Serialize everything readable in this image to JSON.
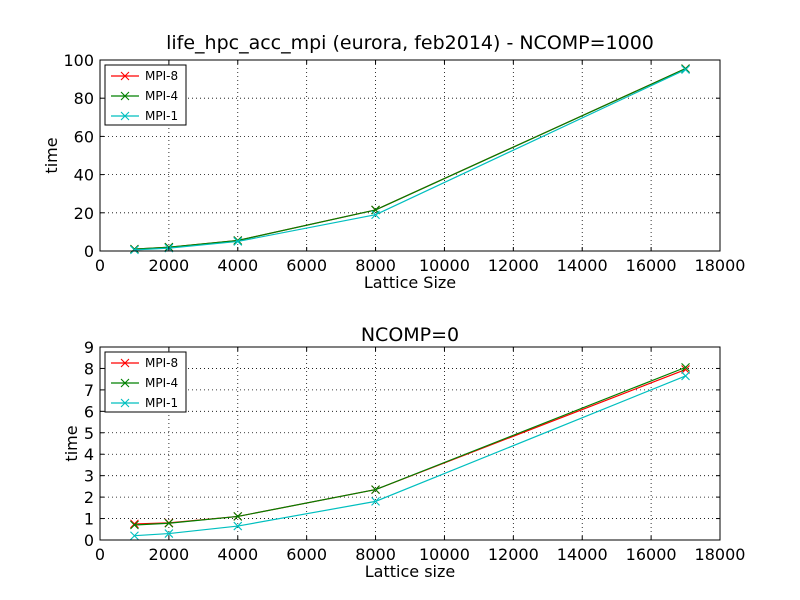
{
  "chart_data": [
    {
      "type": "line",
      "title": "life_hpc_acc_mpi (eurora, feb2014) - NCOMP=1000",
      "xlabel": "Lattice Size",
      "ylabel": "time",
      "xlim": [
        0,
        18000
      ],
      "ylim": [
        0,
        100
      ],
      "xticks": [
        0,
        2000,
        4000,
        6000,
        8000,
        10000,
        12000,
        14000,
        16000,
        18000
      ],
      "yticks": [
        0,
        20,
        40,
        60,
        80,
        100
      ],
      "grid": true,
      "legend_position": "top-left",
      "x": [
        1000,
        2000,
        4000,
        8000,
        17000
      ],
      "series": [
        {
          "name": "MPI-8",
          "color": "#ff0000",
          "values": [
            1.0,
            2.0,
            5.5,
            21.5,
            95.5
          ]
        },
        {
          "name": "MPI-4",
          "color": "#008000",
          "values": [
            1.0,
            2.0,
            5.5,
            21.5,
            95.5
          ]
        },
        {
          "name": "MPI-1",
          "color": "#00bfbf",
          "values": [
            0.6,
            1.5,
            5.0,
            19.0,
            95.0
          ]
        }
      ]
    },
    {
      "type": "line",
      "title": "NCOMP=0",
      "xlabel": "Lattice size",
      "ylabel": "time",
      "xlim": [
        0,
        18000
      ],
      "ylim": [
        0,
        9
      ],
      "xticks": [
        0,
        2000,
        4000,
        6000,
        8000,
        10000,
        12000,
        14000,
        16000,
        18000
      ],
      "yticks": [
        0,
        1,
        2,
        3,
        4,
        5,
        6,
        7,
        8,
        9
      ],
      "grid": true,
      "legend_position": "top-left",
      "x": [
        1000,
        2000,
        4000,
        8000,
        17000
      ],
      "series": [
        {
          "name": "MPI-8",
          "color": "#ff0000",
          "values": [
            0.75,
            0.8,
            1.1,
            2.35,
            7.95
          ]
        },
        {
          "name": "MPI-4",
          "color": "#008000",
          "values": [
            0.7,
            0.78,
            1.1,
            2.35,
            8.05
          ]
        },
        {
          "name": "MPI-1",
          "color": "#00bfbf",
          "values": [
            0.2,
            0.3,
            0.65,
            1.8,
            7.65
          ]
        }
      ]
    }
  ]
}
